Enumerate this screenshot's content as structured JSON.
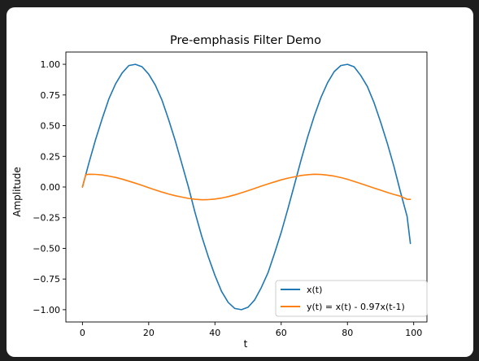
{
  "chart_data": {
    "type": "line",
    "title": "Pre-emphasis Filter Demo",
    "xlabel": "t",
    "ylabel": "Amplitude",
    "xlim": [
      -5,
      104
    ],
    "ylim": [
      -1.1,
      1.1
    ],
    "xticks": [
      0,
      20,
      40,
      60,
      80,
      100
    ],
    "xtick_labels": [
      "0",
      "20",
      "40",
      "60",
      "80",
      "100"
    ],
    "yticks": [
      1.0,
      0.75,
      0.5,
      0.25,
      0.0,
      -0.25,
      -0.5,
      -0.75,
      -1.0
    ],
    "ytick_labels": [
      "1.00",
      "0.75",
      "0.50",
      "0.25",
      "0.00",
      "−0.25",
      "−0.50",
      "−0.75",
      "−1.00"
    ],
    "grid": false,
    "legend_position": "lower-right",
    "series": [
      {
        "name": "x(t)",
        "color": "#1f77b4",
        "x": [
          0,
          2,
          4,
          6,
          8,
          10,
          12,
          14,
          16,
          18,
          20,
          22,
          24,
          26,
          28,
          30,
          32,
          34,
          36,
          38,
          40,
          42,
          44,
          46,
          48,
          50,
          52,
          54,
          56,
          58,
          60,
          62,
          64,
          66,
          68,
          70,
          72,
          74,
          76,
          78,
          80,
          82,
          84,
          86,
          88,
          90,
          92,
          94,
          96,
          98,
          99
        ],
        "y": [
          0.0,
          0.2,
          0.39,
          0.56,
          0.72,
          0.84,
          0.93,
          0.99,
          1.0,
          0.98,
          0.92,
          0.83,
          0.71,
          0.55,
          0.38,
          0.19,
          0.0,
          -0.21,
          -0.4,
          -0.57,
          -0.72,
          -0.85,
          -0.94,
          -0.99,
          -1.0,
          -0.98,
          -0.92,
          -0.82,
          -0.7,
          -0.54,
          -0.37,
          -0.18,
          0.02,
          0.22,
          0.41,
          0.58,
          0.73,
          0.85,
          0.94,
          0.99,
          1.0,
          0.98,
          0.91,
          0.82,
          0.69,
          0.53,
          0.36,
          0.17,
          -0.04,
          -0.24,
          -0.46
        ]
      },
      {
        "name": "y(t) = x(t) - 0.97x(t-1)",
        "color": "#ff7f0e",
        "x": [
          0,
          1,
          2,
          4,
          6,
          8,
          10,
          12,
          14,
          16,
          18,
          20,
          22,
          24,
          26,
          28,
          30,
          32,
          34,
          36,
          38,
          40,
          42,
          44,
          46,
          48,
          50,
          52,
          54,
          56,
          58,
          60,
          62,
          64,
          66,
          68,
          70,
          72,
          74,
          76,
          78,
          80,
          82,
          84,
          86,
          88,
          90,
          92,
          94,
          96,
          98,
          99
        ],
        "y": [
          0.0,
          0.1,
          0.104,
          0.103,
          0.098,
          0.089,
          0.078,
          0.064,
          0.048,
          0.031,
          0.013,
          -0.006,
          -0.024,
          -0.041,
          -0.057,
          -0.071,
          -0.082,
          -0.093,
          -0.1,
          -0.104,
          -0.103,
          -0.098,
          -0.09,
          -0.078,
          -0.064,
          -0.047,
          -0.03,
          -0.012,
          0.007,
          0.025,
          0.042,
          0.058,
          0.072,
          0.083,
          0.094,
          0.1,
          0.104,
          0.102,
          0.097,
          0.089,
          0.077,
          0.063,
          0.046,
          0.028,
          0.01,
          -0.008,
          -0.026,
          -0.044,
          -0.06,
          -0.075,
          -0.1,
          -0.101
        ]
      }
    ]
  }
}
